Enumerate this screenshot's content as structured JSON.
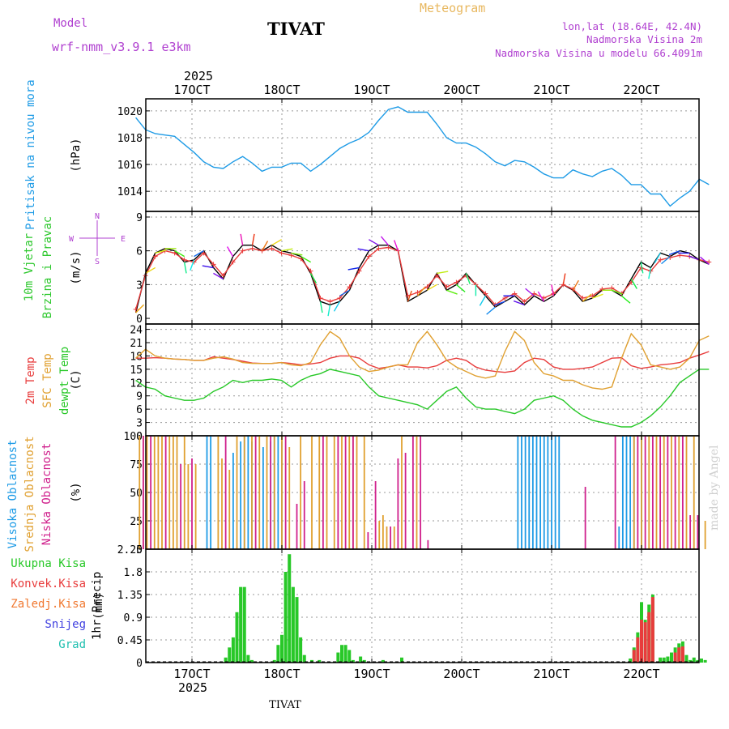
{
  "header": {
    "model_label": "Model",
    "model_name": "wrf-nmm_v3.9.1 e3km",
    "station": "TIVAT",
    "product": "Meteogram",
    "coords": "lon,lat (18.64E, 42.4N)",
    "elev1": "Nadmorska Visina 2m",
    "elev2": "Nadmorska Visina u modelu 66.4091m",
    "watermark": "made by Angel",
    "footer_station": "TIVAT"
  },
  "colors": {
    "pressure": "#1e9be6",
    "wind_label": "#2ec82e",
    "temp2m": "#e83c3c",
    "sfc": "#e0a030",
    "dew": "#28c828",
    "cloud_high": "#1e9be6",
    "cloud_mid": "#e0a030",
    "cloud_low": "#d0208c",
    "precip": "#28c828",
    "conv": "#e83c3c",
    "frz": "#f07830",
    "snow": "#4040e0",
    "grad": "#20c0b0",
    "grid": "#999999",
    "header_purple": "#b040d0",
    "meteogram_orange": "#e8b860"
  },
  "chart_data": {
    "type": "meteogram",
    "time_axis": {
      "top_year": "2025",
      "bottom_year": "2025",
      "days": [
        "17OCT",
        "18OCT",
        "19OCT",
        "20OCT",
        "21OCT",
        "22OCT"
      ],
      "start_hours_before_17oct": 15,
      "total_hours": 153
    },
    "panels": [
      {
        "id": "pressure",
        "labels": [
          "Pritisak na nivou mora"
        ],
        "unit": "(hPa)",
        "yticks": [
          1014,
          1016,
          1018,
          1020
        ],
        "ylim": [
          1012.5,
          1020.9
        ],
        "series": [
          {
            "name": "Pritisak",
            "color_key": "pressure",
            "values": [
              1019.5,
              1018.6,
              1018.3,
              1018.2,
              1018.1,
              1017.5,
              1016.9,
              1016.2,
              1015.8,
              1015.7,
              1016.2,
              1016.6,
              1016.1,
              1015.5,
              1015.8,
              1015.8,
              1016.1,
              1016.1,
              1015.5,
              1016.0,
              1016.6,
              1017.2,
              1017.6,
              1017.9,
              1018.4,
              1019.3,
              1020.1,
              1020.3,
              1019.9,
              1019.9,
              1019.9,
              1019.0,
              1018.0,
              1017.6,
              1017.6,
              1017.3,
              1016.8,
              1016.2,
              1015.9,
              1016.3,
              1016.2,
              1015.8,
              1015.3,
              1015.0,
              1015.0,
              1015.6,
              1015.3,
              1015.1,
              1015.5,
              1015.7,
              1015.2,
              1014.5,
              1014.5,
              1013.8,
              1013.8,
              1012.9,
              1013.5,
              1014.0,
              1014.9,
              1014.5
            ]
          }
        ]
      },
      {
        "id": "wind",
        "labels": [
          "10m Vjetar",
          "Brzina i Pravac"
        ],
        "unit": "(m/s)",
        "compass": [
          "N",
          "S",
          "W",
          "E"
        ],
        "yticks": [
          0,
          3,
          6,
          9
        ],
        "ylim": [
          -0.5,
          9.5
        ],
        "series": [
          {
            "name": "Brzina",
            "color": "#000000",
            "values": [
              0.5,
              4.0,
              5.8,
              6.2,
              6.0,
              5.0,
              5.2,
              6.0,
              4.5,
              3.5,
              5.5,
              6.5,
              6.5,
              6.0,
              6.5,
              6.0,
              5.8,
              5.5,
              4.0,
              1.5,
              1.2,
              1.5,
              2.5,
              4.5,
              6.0,
              6.5,
              6.5,
              6.0,
              1.5,
              2.0,
              2.5,
              4.0,
              2.5,
              3.0,
              4.0,
              3.0,
              2.0,
              1.0,
              1.5,
              2.0,
              1.2,
              2.0,
              1.5,
              2.0,
              3.0,
              2.5,
              1.5,
              1.8,
              2.5,
              2.5,
              2.0,
              3.5,
              5.0,
              4.5,
              5.8,
              5.5,
              6.0,
              5.8,
              5.2,
              4.8
            ]
          },
          {
            "name": "Udari",
            "color": "#e83c3c",
            "values": [
              0.8,
              3.8,
              5.5,
              6.0,
              5.8,
              5.2,
              5.0,
              5.8,
              4.8,
              3.8,
              5.0,
              6.0,
              6.2,
              6.0,
              6.2,
              5.8,
              5.6,
              5.3,
              4.2,
              1.8,
              1.5,
              1.8,
              2.8,
              4.2,
              5.5,
              6.2,
              6.3,
              6.0,
              2.0,
              2.3,
              2.8,
              3.8,
              2.8,
              3.2,
              3.8,
              3.0,
              2.2,
              1.2,
              1.8,
              2.2,
              1.5,
              2.2,
              1.8,
              2.2,
              3.0,
              2.6,
              1.8,
              2.0,
              2.6,
              2.7,
              2.2,
              3.2,
              4.5,
              4.2,
              5.2,
              5.4,
              5.6,
              5.5,
              5.2,
              5.0
            ]
          },
          {
            "name": "Pravac",
            "values": [
              45,
              60,
              75,
              90,
              120,
              170,
              200,
              240,
              280,
              300,
              330,
              350,
              10,
              30,
              60,
              80,
              100,
              120,
              150,
              170,
              190,
              210,
              240,
              260,
              280,
              300,
              320,
              340,
              20,
              40,
              60,
              80,
              110,
              130,
              160,
              180,
              210,
              230,
              250,
              270,
              290,
              310,
              330,
              350,
              10,
              30,
              50,
              70,
              90,
              110,
              130,
              150,
              170,
              190,
              210,
              230,
              250,
              270,
              290,
              310
            ]
          }
        ]
      },
      {
        "id": "temperature",
        "labels": [
          "2m Temp",
          "SFC Temp",
          "dewpt Temp"
        ],
        "label_color_keys": [
          "temp2m",
          "sfc",
          "dew"
        ],
        "unit": "(C)",
        "yticks": [
          0,
          3,
          6,
          9,
          12,
          15,
          18,
          21,
          24
        ],
        "ylim": [
          0,
          25.2
        ],
        "series": [
          {
            "name": "2m Temp",
            "color_key": "temp2m",
            "values": [
              17.5,
              17.5,
              17.6,
              17.5,
              17.3,
              17.2,
              17.0,
              17.0,
              17.8,
              17.5,
              17.2,
              16.8,
              16.4,
              16.3,
              16.3,
              16.5,
              16.3,
              16.0,
              16.2,
              16.5,
              17.5,
              18.0,
              18.0,
              17.5,
              16.0,
              15.2,
              15.5,
              16.0,
              15.5,
              15.5,
              15.3,
              15.8,
              17.0,
              17.5,
              17.0,
              15.5,
              14.8,
              14.5,
              14.3,
              14.6,
              16.5,
              17.5,
              17.2,
              15.5,
              15.0,
              15.0,
              15.2,
              15.5,
              16.5,
              17.5,
              17.6,
              15.8,
              15.2,
              15.5,
              16.0,
              16.2,
              16.5,
              17.5,
              18.2,
              19.0
            ]
          },
          {
            "name": "SFC Temp",
            "color_key": "sfc",
            "values": [
              17.5,
              19.5,
              18.0,
              17.5,
              17.3,
              17.2,
              17.0,
              17.0,
              17.5,
              17.8,
              17.3,
              16.5,
              16.3,
              16.3,
              16.3,
              16.5,
              16.0,
              15.8,
              16.5,
              20.5,
              23.5,
              22.0,
              18.0,
              15.5,
              14.5,
              14.8,
              15.5,
              16.0,
              16.0,
              21.0,
              23.5,
              20.5,
              17.0,
              15.5,
              14.5,
              13.5,
              13.0,
              13.5,
              19.0,
              23.5,
              21.5,
              16.5,
              14.0,
              13.5,
              12.5,
              12.5,
              11.5,
              10.8,
              10.5,
              11.0,
              17.5,
              23.0,
              20.5,
              16.0,
              15.5,
              15.0,
              15.5,
              17.5,
              21.5,
              22.5
            ]
          },
          {
            "name": "dewpt Temp",
            "color_key": "dew",
            "values": [
              12.5,
              11.0,
              10.5,
              9.0,
              8.5,
              8.0,
              8.0,
              8.5,
              10.0,
              11.0,
              12.5,
              12.0,
              12.5,
              12.5,
              12.8,
              12.5,
              11.0,
              12.5,
              13.5,
              14.0,
              15.0,
              14.5,
              14.0,
              13.5,
              11.0,
              9.0,
              8.5,
              8.0,
              7.5,
              7.0,
              6.0,
              8.0,
              10.0,
              11.0,
              8.5,
              6.5,
              6.0,
              6.0,
              5.5,
              5.0,
              6.0,
              8.0,
              8.5,
              9.0,
              8.0,
              6.0,
              4.5,
              3.5,
              3.0,
              2.5,
              2.0,
              2.0,
              3.0,
              4.5,
              6.5,
              9.0,
              12.0,
              13.5,
              15.0,
              15.0
            ]
          }
        ]
      },
      {
        "id": "clouds",
        "labels": [
          "Visoka Oblacnost",
          "Srednja Oblacnost",
          "Niska Oblacnost"
        ],
        "label_color_keys": [
          "cloud_high",
          "cloud_mid",
          "cloud_low"
        ],
        "unit": "(%)",
        "yticks": [
          0,
          25,
          50,
          75,
          100
        ],
        "ylim": [
          0,
          100
        ],
        "series": [
          {
            "name": "Visoka Oblacnost",
            "color_key": "cloud_high",
            "hours": [
              19,
              20,
              26,
              28,
              29,
              30,
              31,
              34,
              36,
              37,
              38,
              39,
              102,
              103,
              104,
              105,
              106,
              107,
              108,
              109,
              110,
              111,
              112,
              113,
              129,
              130,
              131,
              132,
              133,
              135
            ],
            "values": [
              100,
              100,
              85,
              95,
              100,
              100,
              95,
              90,
              95,
              100,
              100,
              95,
              100,
              100,
              100,
              100,
              100,
              100,
              100,
              100,
              100,
              100,
              100,
              100,
              20,
              100,
              100,
              100,
              100,
              100
            ]
          },
          {
            "name": "Srednja Oblacnost",
            "color_key": "cloud_mid",
            "hours": [
              1,
              2,
              3,
              5,
              6,
              7,
              9,
              10,
              11,
              13,
              14,
              16,
              22,
              23,
              25,
              27,
              29,
              31,
              33,
              35,
              37,
              39,
              41,
              44,
              47,
              49,
              51,
              53,
              55,
              57,
              58,
              59,
              61,
              65,
              66,
              67,
              69,
              71,
              75,
              133,
              135,
              137,
              139,
              141,
              143,
              145,
              147,
              149,
              152
            ],
            "values": [
              100,
              100,
              100,
              100,
              100,
              100,
              100,
              100,
              100,
              100,
              75,
              75,
              100,
              80,
              70,
              100,
              100,
              100,
              100,
              100,
              100,
              100,
              90,
              100,
              100,
              100,
              100,
              100,
              100,
              100,
              100,
              100,
              100,
              25,
              30,
              20,
              20,
              100,
              100,
              100,
              100,
              100,
              100,
              100,
              100,
              100,
              100,
              100,
              25
            ]
          },
          {
            "name": "Niska Oblacnost",
            "color_key": "cloud_low",
            "hours": [
              2,
              4,
              8,
              12,
              15,
              24,
              32,
              36,
              40,
              43,
              45,
              50,
              54,
              56,
              58,
              62,
              64,
              68,
              70,
              72,
              74,
              76,
              78,
              120,
              128,
              134,
              136,
              138,
              140,
              142,
              144,
              146,
              148,
              150
            ],
            "values": [
              100,
              100,
              100,
              75,
              80,
              100,
              100,
              100,
              100,
              40,
              60,
              100,
              100,
              100,
              100,
              15,
              60,
              20,
              80,
              85,
              100,
              100,
              8,
              55,
              100,
              100,
              100,
              100,
              100,
              100,
              100,
              100,
              30,
              30
            ]
          }
        ]
      },
      {
        "id": "precip",
        "labels": [
          "Ukupna Kisa",
          "Konvek.Kisa",
          "Zaledj.Kisa",
          "Snijeg",
          "Grad"
        ],
        "label_color_keys": [
          "precip",
          "conv",
          "frz",
          "snow",
          "grad"
        ],
        "axis_label": "1hr Precip",
        "unit": "(mm)",
        "yticks": [
          0,
          0.45,
          0.9,
          1.35,
          1.8,
          2.25
        ],
        "ytick_labels": [
          "0",
          "0.45",
          "0.9",
          "1.35",
          "1.8",
          "2.25"
        ],
        "ylim": [
          0,
          2.25
        ],
        "series": [
          {
            "name": "Ukupna Kisa",
            "color_key": "precip",
            "hours": [
              24,
              25,
              26,
              27,
              28,
              29,
              30,
              31,
              37,
              38,
              39,
              40,
              41,
              42,
              43,
              44,
              45,
              47,
              49,
              54,
              55,
              56,
              57,
              58,
              60,
              61,
              66,
              71,
              132,
              133,
              134,
              135,
              136,
              137,
              138,
              140,
              141,
              142,
              143,
              144,
              145,
              146,
              147,
              148,
              149,
              150,
              151,
              152
            ],
            "values": [
              0.1,
              0.3,
              0.5,
              1.0,
              1.5,
              1.5,
              0.15,
              0.05,
              0.05,
              0.35,
              0.55,
              1.8,
              2.15,
              1.5,
              1.3,
              0.5,
              0.15,
              0.05,
              0.05,
              0.2,
              0.35,
              0.35,
              0.25,
              0.05,
              0.12,
              0.05,
              0.05,
              0.1,
              0.08,
              0.3,
              0.6,
              1.2,
              0.85,
              1.15,
              1.35,
              0.1,
              0.1,
              0.12,
              0.2,
              0.3,
              0.38,
              0.42,
              0.15,
              0.05,
              0.1,
              0.05,
              0.08,
              0.05
            ]
          },
          {
            "name": "Konvek.Kisa",
            "color_key": "conv",
            "hours": [
              133,
              134,
              135,
              136,
              137,
              138,
              144,
              145,
              146
            ],
            "values": [
              0.25,
              0.5,
              0.85,
              0.8,
              1.0,
              1.3,
              0.2,
              0.3,
              0.32
            ]
          }
        ]
      }
    ]
  }
}
